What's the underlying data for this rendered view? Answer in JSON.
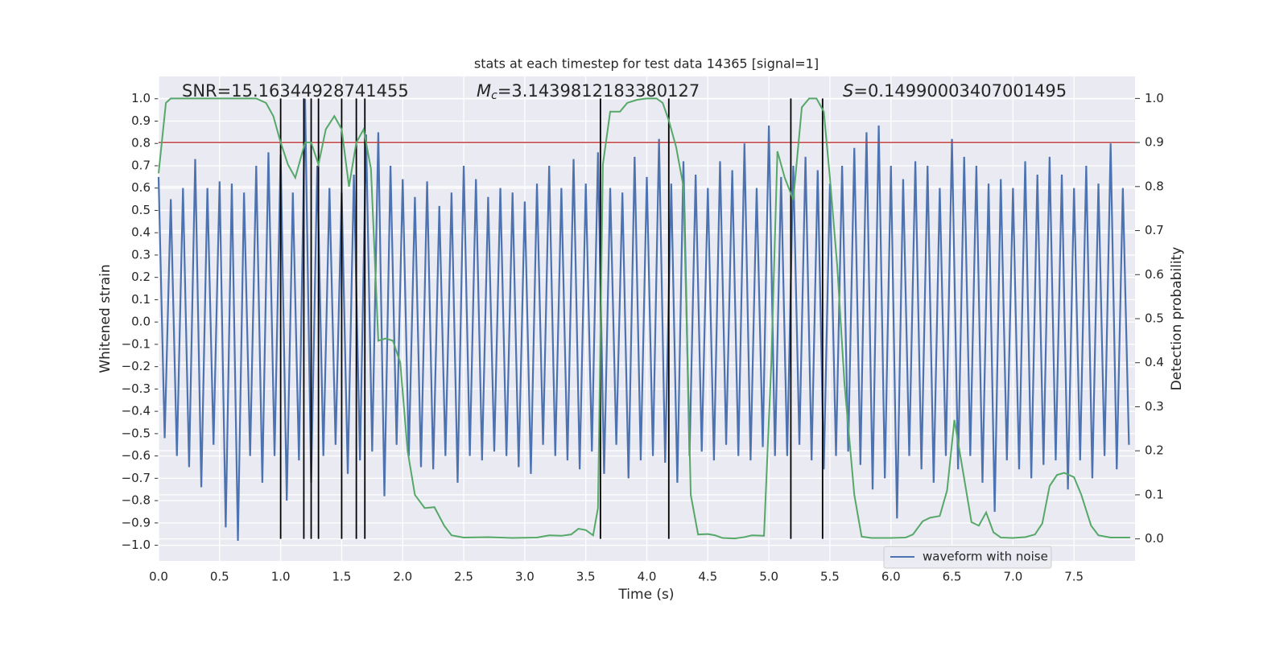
{
  "chart_data": {
    "type": "line",
    "title": "stats at each timestep for test data 14365 [signal=1]",
    "x_label": "Time (s)",
    "y_label": "Whitened strain",
    "y2_label": "Detection probability",
    "xlim": [
      0,
      8
    ],
    "ylim": [
      -1.07,
      1.1
    ],
    "y2lim": [
      -0.05,
      1.05
    ],
    "grid": true,
    "legend": "lower right",
    "xticks": [
      {
        "value": 0,
        "label": "0.0"
      },
      0.5,
      {
        "value": 1,
        "label": "1.0"
      },
      1.5,
      {
        "value": 2,
        "label": "2.0"
      },
      2.5,
      {
        "value": 3,
        "label": "3.0"
      },
      3.5,
      {
        "value": 4,
        "label": "4.0"
      },
      4.5,
      {
        "value": 5,
        "label": "5.0"
      },
      5.5,
      {
        "value": 6,
        "label": "6.0"
      },
      6.5,
      {
        "value": 7,
        "label": "7.0"
      },
      7.5
    ],
    "yticks": [
      {
        "value": -1,
        "label": "−1.0"
      },
      {
        "value": -0.9,
        "label": "−0.9"
      },
      {
        "value": -0.8,
        "label": "−0.8"
      },
      {
        "value": -0.7,
        "label": "−0.7"
      },
      {
        "value": -0.6,
        "label": "−0.6"
      },
      {
        "value": -0.5,
        "label": "−0.5"
      },
      {
        "value": -0.4,
        "label": "−0.4"
      },
      {
        "value": -0.3,
        "label": "−0.3"
      },
      {
        "value": -0.2,
        "label": "−0.2"
      },
      {
        "value": -0.1,
        "label": "−0.1"
      },
      {
        "value": 0,
        "label": "0.0"
      },
      0.1,
      0.2,
      0.3,
      0.4,
      0.5,
      0.6,
      0.7,
      0.8,
      0.9,
      {
        "value": 1,
        "label": "1.0"
      }
    ],
    "y2ticks": [
      {
        "value": 0,
        "label": "0.0"
      },
      0.1,
      0.2,
      0.3,
      0.4,
      0.5,
      0.6,
      0.7,
      0.8,
      0.9,
      {
        "value": 1,
        "label": "1.0"
      }
    ],
    "annotations": [
      {
        "symbol": "SNR",
        "text": "=15.16344928741455"
      },
      {
        "symbol": "M",
        "subscript": "c",
        "text": "=3.1439812183380127",
        "italic": true
      },
      {
        "symbol": "S",
        "text": "=0.14990003407001495",
        "italic": true
      }
    ],
    "series": [
      {
        "name": "waveform with noise",
        "color": "#4c72b0",
        "x": [
          0,
          0.05,
          0.1,
          0.15,
          0.2,
          0.25,
          0.3,
          0.35,
          0.4,
          0.45,
          0.5,
          0.55,
          0.6,
          0.65,
          0.7,
          0.75,
          0.8,
          0.85,
          0.9,
          0.95,
          1,
          1.05,
          1.1,
          1.15,
          1.2,
          1.25,
          1.3,
          1.35,
          1.4,
          1.45,
          1.5,
          1.55,
          1.6,
          1.65,
          1.7,
          1.75,
          1.8,
          1.85,
          1.9,
          1.95,
          2,
          2.05,
          2.1,
          2.15,
          2.2,
          2.25,
          2.3,
          2.35,
          2.4,
          2.45,
          2.5,
          2.55,
          2.6,
          2.65,
          2.7,
          2.75,
          2.8,
          2.85,
          2.9,
          2.95,
          3,
          3.05,
          3.1,
          3.15,
          3.2,
          3.25,
          3.3,
          3.35,
          3.4,
          3.45,
          3.5,
          3.55,
          3.6,
          3.65,
          3.7,
          3.75,
          3.8,
          3.85,
          3.9,
          3.95,
          4,
          4.05,
          4.1,
          4.15,
          4.2,
          4.25,
          4.3,
          4.35,
          4.4,
          4.45,
          4.5,
          4.55,
          4.6,
          4.65,
          4.7,
          4.75,
          4.8,
          4.85,
          4.9,
          4.95,
          5,
          5.05,
          5.1,
          5.15,
          5.2,
          5.25,
          5.3,
          5.35,
          5.4,
          5.45,
          5.5,
          5.55,
          5.6,
          5.65,
          5.7,
          5.75,
          5.8,
          5.85,
          5.9,
          5.95,
          6,
          6.05,
          6.1,
          6.15,
          6.2,
          6.25,
          6.3,
          6.35,
          6.4,
          6.45,
          6.5,
          6.55,
          6.6,
          6.65,
          6.7,
          6.75,
          6.8,
          6.85,
          6.9,
          6.95,
          7,
          7.05,
          7.1,
          7.15,
          7.2,
          7.25,
          7.3,
          7.35,
          7.4,
          7.45,
          7.5,
          7.55,
          7.6,
          7.65,
          7.7,
          7.75,
          7.8,
          7.85,
          7.9,
          7.95
        ],
        "values": [
          0.65,
          -0.52,
          0.55,
          -0.6,
          0.6,
          -0.65,
          0.73,
          -0.74,
          0.6,
          -0.55,
          0.63,
          -0.92,
          0.62,
          -0.98,
          0.58,
          -0.6,
          0.7,
          -0.72,
          0.76,
          -0.6,
          0.75,
          -0.8,
          0.58,
          -0.62,
          1.0,
          -0.72,
          0.7,
          -0.6,
          0.6,
          -0.55,
          0.58,
          -0.68,
          0.66,
          -0.62,
          0.84,
          -0.58,
          0.85,
          -0.78,
          0.7,
          -0.55,
          0.64,
          -0.6,
          0.56,
          -0.65,
          0.63,
          -0.66,
          0.52,
          -0.6,
          0.58,
          -0.72,
          0.7,
          -0.6,
          0.64,
          -0.62,
          0.56,
          -0.58,
          0.6,
          -0.6,
          0.58,
          -0.65,
          0.54,
          -0.68,
          0.62,
          -0.55,
          0.7,
          -0.6,
          0.6,
          -0.62,
          0.73,
          -0.66,
          0.62,
          -0.58,
          0.76,
          -0.68,
          0.6,
          -0.55,
          0.58,
          -0.7,
          0.74,
          -0.62,
          0.65,
          -0.6,
          0.82,
          -0.63,
          0.62,
          -0.72,
          0.72,
          -0.6,
          0.66,
          -0.58,
          0.6,
          -0.62,
          0.72,
          -0.55,
          0.68,
          -0.6,
          0.8,
          -0.62,
          0.6,
          -0.56,
          0.88,
          -0.6,
          0.65,
          -0.6,
          0.7,
          -0.55,
          0.74,
          -0.62,
          0.68,
          -0.66,
          0.62,
          -0.6,
          0.7,
          -0.58,
          0.78,
          -0.64,
          0.85,
          -0.75,
          0.88,
          -0.7,
          0.7,
          -0.88,
          0.64,
          -0.6,
          0.72,
          -0.66,
          0.7,
          -0.72,
          0.6,
          -0.6,
          0.82,
          -0.66,
          0.74,
          -0.6,
          0.7,
          -0.72,
          0.62,
          -0.85,
          0.64,
          -0.62,
          0.6,
          -0.66,
          0.72,
          -0.7,
          0.66,
          -0.64,
          0.74,
          -0.62,
          0.66,
          -0.75,
          0.6,
          -0.62,
          0.7,
          -0.7,
          0.62,
          -0.6,
          0.8,
          -0.66,
          0.6,
          -0.55
        ]
      }
    ],
    "probability": {
      "color": "#55a868",
      "axis": "y2",
      "x": [
        0,
        0.06,
        0.1,
        0.2,
        0.4,
        0.6,
        0.8,
        0.88,
        0.94,
        1.0,
        1.06,
        1.12,
        1.2,
        1.25,
        1.31,
        1.37,
        1.44,
        1.5,
        1.56,
        1.62,
        1.68,
        1.74,
        1.8,
        1.86,
        1.92,
        1.98,
        2.04,
        2.1,
        2.18,
        2.26,
        2.34,
        2.4,
        2.5,
        2.7,
        2.9,
        3.1,
        3.2,
        3.3,
        3.38,
        3.44,
        3.5,
        3.56,
        3.6,
        3.64,
        3.7,
        3.78,
        3.84,
        3.92,
        4.0,
        4.08,
        4.13,
        4.18,
        4.24,
        4.3,
        4.36,
        4.42,
        4.5,
        4.56,
        4.62,
        4.72,
        4.8,
        4.86,
        4.96,
        5.02,
        5.07,
        5.13,
        5.2,
        5.27,
        5.33,
        5.39,
        5.45,
        5.5,
        5.56,
        5.62,
        5.7,
        5.76,
        5.84,
        6.0,
        6.12,
        6.18,
        6.26,
        6.32,
        6.4,
        6.46,
        6.52,
        6.58,
        6.66,
        6.72,
        6.78,
        6.84,
        6.9,
        7.0,
        7.1,
        7.18,
        7.24,
        7.3,
        7.36,
        7.42,
        7.5,
        7.56,
        7.64,
        7.7,
        7.8,
        7.96
      ],
      "values": [
        0.83,
        0.99,
        1.0,
        1.0,
        1.0,
        1.0,
        1.0,
        0.99,
        0.96,
        0.9,
        0.85,
        0.82,
        0.9,
        0.9,
        0.85,
        0.93,
        0.96,
        0.93,
        0.8,
        0.9,
        0.93,
        0.84,
        0.45,
        0.455,
        0.45,
        0.4,
        0.2,
        0.1,
        0.07,
        0.072,
        0.03,
        0.008,
        0.003,
        0.004,
        0.002,
        0.003,
        0.008,
        0.007,
        0.01,
        0.023,
        0.02,
        0.008,
        0.07,
        0.85,
        0.97,
        0.97,
        0.99,
        0.997,
        1.0,
        1.0,
        0.99,
        0.95,
        0.89,
        0.8,
        0.1,
        0.01,
        0.011,
        0.008,
        0.002,
        0.001,
        0.004,
        0.008,
        0.007,
        0.4,
        0.88,
        0.82,
        0.77,
        0.98,
        1.0,
        1.0,
        0.97,
        0.82,
        0.62,
        0.35,
        0.1,
        0.005,
        0.002,
        0.002,
        0.003,
        0.01,
        0.04,
        0.048,
        0.052,
        0.11,
        0.27,
        0.17,
        0.038,
        0.03,
        0.06,
        0.015,
        0.003,
        0.002,
        0.004,
        0.01,
        0.035,
        0.12,
        0.145,
        0.15,
        0.14,
        0.1,
        0.03,
        0.008,
        0.003,
        0.003
      ]
    },
    "threshold": {
      "value": 0.9,
      "axis": "y2",
      "color": "#c03d3e"
    },
    "vlines": {
      "x": [
        1.0,
        1.19,
        1.25,
        1.31,
        1.5,
        1.62,
        1.69,
        3.62,
        4.18,
        5.18,
        5.44
      ],
      "ymin": 0,
      "ymax": 1,
      "axis": "y2",
      "color": "#000000"
    }
  }
}
